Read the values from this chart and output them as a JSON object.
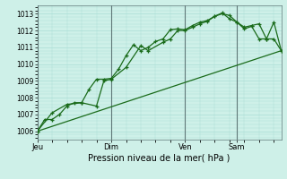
{
  "title": "",
  "xlabel": "Pression niveau de la mer( hPa )",
  "ylabel": "",
  "bg_color": "#cef0e8",
  "grid_color": "#aaddd5",
  "line_color": "#1a6b1a",
  "day_line_color": "#607878",
  "ylim": [
    1005.5,
    1013.5
  ],
  "yticks": [
    1006,
    1007,
    1008,
    1009,
    1010,
    1011,
    1012,
    1013
  ],
  "day_labels": [
    "Jeu",
    "Dim",
    "Ven",
    "Sam"
  ],
  "day_positions": [
    0,
    10,
    20,
    27
  ],
  "xlim": [
    0,
    33
  ],
  "series1_x": [
    0,
    1,
    2,
    3,
    4,
    5,
    6,
    7,
    8,
    9,
    10,
    11,
    12,
    13,
    14,
    15,
    16,
    17,
    18,
    19,
    20,
    21,
    22,
    23,
    24,
    25,
    26,
    27,
    28,
    29,
    30,
    31,
    32,
    33
  ],
  "series1_y": [
    1006.0,
    1006.7,
    1006.7,
    1007.0,
    1007.5,
    1007.7,
    1007.7,
    1008.5,
    1009.1,
    1009.1,
    1009.15,
    1009.7,
    1010.5,
    1011.15,
    1010.8,
    1011.0,
    1011.35,
    1011.5,
    1012.05,
    1012.1,
    1012.05,
    1012.3,
    1012.5,
    1012.6,
    1012.85,
    1013.0,
    1012.9,
    1012.5,
    1012.1,
    1012.25,
    1011.5,
    1011.5,
    1012.5,
    1010.8
  ],
  "series2_x": [
    0,
    2,
    4,
    6,
    8,
    9,
    10,
    12,
    14,
    15,
    17,
    18,
    19,
    20,
    21,
    22,
    23,
    24,
    25,
    26,
    27,
    28,
    29,
    30,
    31,
    32,
    33
  ],
  "series2_y": [
    1006.0,
    1007.1,
    1007.6,
    1007.7,
    1007.5,
    1009.0,
    1009.1,
    1009.8,
    1011.1,
    1010.8,
    1011.3,
    1011.5,
    1012.0,
    1012.0,
    1012.2,
    1012.4,
    1012.55,
    1012.85,
    1013.05,
    1012.7,
    1012.5,
    1012.2,
    1012.3,
    1012.4,
    1011.5,
    1011.5,
    1010.8
  ],
  "series3_x": [
    0,
    33
  ],
  "series3_y": [
    1006.0,
    1010.8
  ]
}
